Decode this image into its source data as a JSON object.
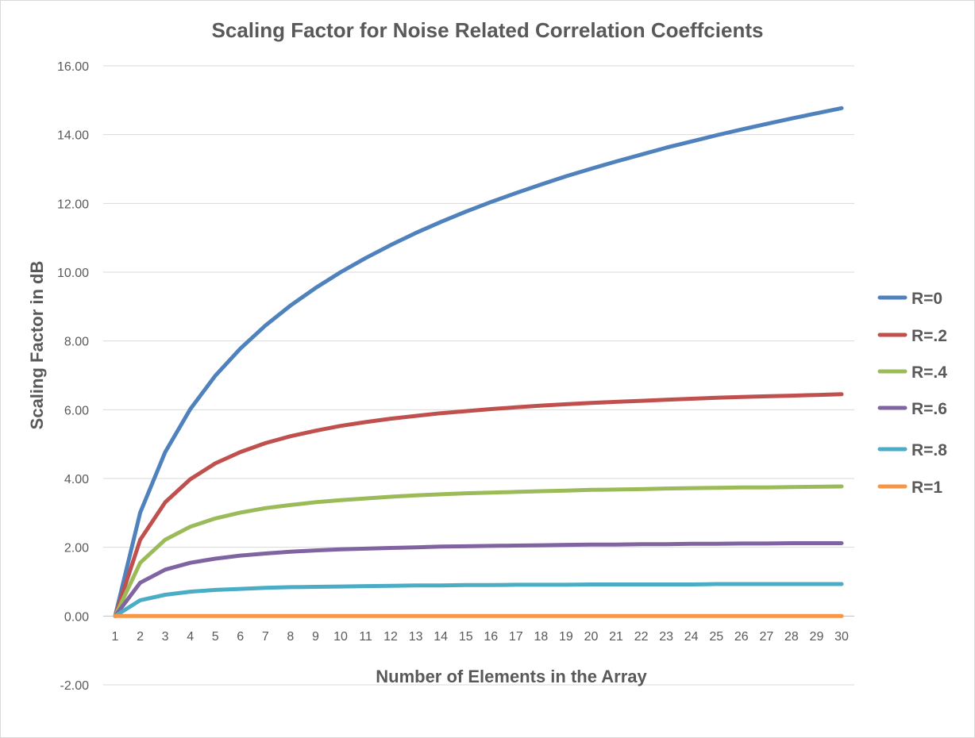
{
  "chart_data": {
    "type": "line",
    "title": "Scaling Factor for Noise Related Correlation Coeffcients",
    "xlabel": "Number of Elements in the Array",
    "ylabel": "Scaling Factor in dB",
    "ylim": [
      -2,
      16
    ],
    "yticks": [
      "-2.00",
      "0.00",
      "2.00",
      "4.00",
      "6.00",
      "8.00",
      "10.00",
      "12.00",
      "14.00",
      "16.00"
    ],
    "ytick_values": [
      -2,
      0,
      2,
      4,
      6,
      8,
      10,
      12,
      14,
      16
    ],
    "x": [
      1,
      2,
      3,
      4,
      5,
      6,
      7,
      8,
      9,
      10,
      11,
      12,
      13,
      14,
      15,
      16,
      17,
      18,
      19,
      20,
      21,
      22,
      23,
      24,
      25,
      26,
      27,
      28,
      29,
      30
    ],
    "grid": true,
    "legend_position": "right",
    "series": [
      {
        "name": "R=0",
        "color": "#4F81BD",
        "values": [
          0,
          3.01,
          4.77,
          6.02,
          6.99,
          7.78,
          8.45,
          9.03,
          9.54,
          10.0,
          10.41,
          10.79,
          11.14,
          11.46,
          11.76,
          12.04,
          12.3,
          12.55,
          12.79,
          13.01,
          13.22,
          13.42,
          13.62,
          13.8,
          13.98,
          14.15,
          14.31,
          14.47,
          14.62,
          14.77
        ]
      },
      {
        "name": "R=.2",
        "color": "#C0504D",
        "values": [
          0,
          2.22,
          3.31,
          3.98,
          4.44,
          4.77,
          5.03,
          5.23,
          5.39,
          5.53,
          5.64,
          5.74,
          5.82,
          5.9,
          5.96,
          6.02,
          6.07,
          6.12,
          6.16,
          6.2,
          6.23,
          6.26,
          6.29,
          6.32,
          6.35,
          6.37,
          6.39,
          6.41,
          6.43,
          6.45
        ]
      },
      {
        "name": "R=.4",
        "color": "#9BBB59",
        "values": [
          0,
          1.55,
          2.22,
          2.6,
          2.84,
          3.01,
          3.14,
          3.23,
          3.31,
          3.37,
          3.42,
          3.47,
          3.51,
          3.54,
          3.57,
          3.59,
          3.61,
          3.63,
          3.65,
          3.67,
          3.68,
          3.69,
          3.71,
          3.72,
          3.73,
          3.74,
          3.74,
          3.75,
          3.76,
          3.77
        ]
      },
      {
        "name": "R=.6",
        "color": "#8064A2",
        "values": [
          0,
          0.97,
          1.35,
          1.55,
          1.67,
          1.76,
          1.82,
          1.87,
          1.91,
          1.94,
          1.96,
          1.98,
          2.0,
          2.02,
          2.03,
          2.04,
          2.05,
          2.06,
          2.07,
          2.08,
          2.08,
          2.09,
          2.09,
          2.1,
          2.1,
          2.11,
          2.11,
          2.12,
          2.12,
          2.12
        ]
      },
      {
        "name": "R=.8",
        "color": "#4BACC6",
        "values": [
          0,
          0.46,
          0.62,
          0.71,
          0.76,
          0.79,
          0.82,
          0.84,
          0.85,
          0.86,
          0.87,
          0.88,
          0.89,
          0.89,
          0.9,
          0.9,
          0.91,
          0.91,
          0.91,
          0.92,
          0.92,
          0.92,
          0.92,
          0.92,
          0.93,
          0.93,
          0.93,
          0.93,
          0.93,
          0.93
        ]
      },
      {
        "name": "R=1",
        "color": "#F79646",
        "values": [
          0,
          0,
          0,
          0,
          0,
          0,
          0,
          0,
          0,
          0,
          0,
          0,
          0,
          0,
          0,
          0,
          0,
          0,
          0,
          0,
          0,
          0,
          0,
          0,
          0,
          0,
          0,
          0,
          0,
          0
        ]
      }
    ]
  }
}
